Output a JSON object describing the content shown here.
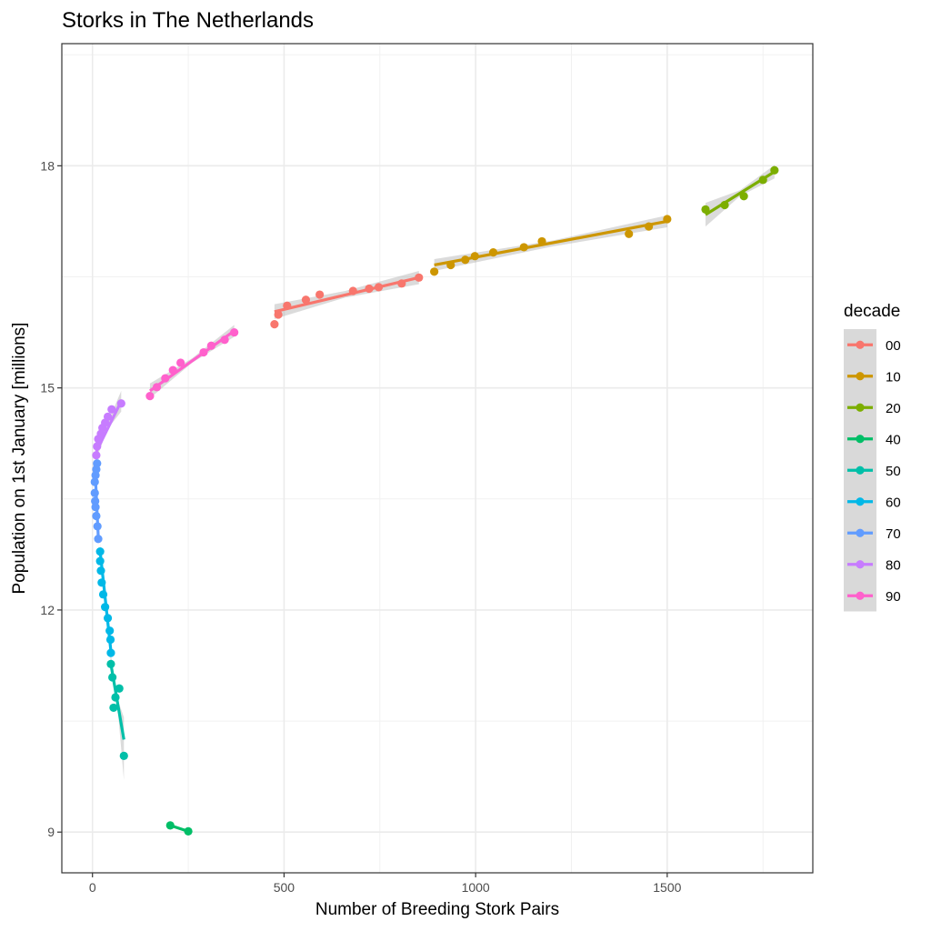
{
  "chart_data": {
    "type": "scatter",
    "title": "Storks in The Netherlands",
    "xlabel": "Number of Breeding Stork Pairs",
    "ylabel": "Population on 1st January [millions]",
    "xlim": [
      -80,
      1880
    ],
    "ylim": [
      8.45,
      19.65
    ],
    "x_ticks": [
      0,
      500,
      1000,
      1500
    ],
    "x_tick_labels": [
      "0",
      "500",
      "1000",
      "1500"
    ],
    "y_ticks": [
      9,
      12,
      15,
      18
    ],
    "y_tick_labels": [
      "9",
      "12",
      "15",
      "18"
    ],
    "grid": true,
    "legend": {
      "title": "decade",
      "position": "right"
    },
    "colors": {
      "00": "#F8766D",
      "10": "#CD9600",
      "20": "#7CAE00",
      "40": "#00BE67",
      "50": "#00BFA8",
      "60": "#00B8E7",
      "70": "#619CFF",
      "80": "#C77CFF",
      "90": "#FF61CC"
    },
    "series": [
      {
        "name": "00",
        "x": [
          475,
          485,
          508,
          557,
          593,
          680,
          722,
          747,
          807,
          852
        ],
        "y": [
          15.86,
          15.99,
          16.11,
          16.19,
          16.26,
          16.31,
          16.34,
          16.36,
          16.41,
          16.49
        ]
      },
      {
        "name": "10",
        "x": [
          892,
          935,
          973,
          998,
          1046,
          1126,
          1173,
          1400,
          1452,
          1500
        ],
        "y": [
          16.57,
          16.66,
          16.73,
          16.78,
          16.83,
          16.9,
          16.98,
          17.08,
          17.18,
          17.28
        ]
      },
      {
        "name": "20",
        "x": [
          1600,
          1650,
          1700,
          1750,
          1780
        ],
        "y": [
          17.41,
          17.47,
          17.59,
          17.81,
          17.94
        ]
      },
      {
        "name": "40",
        "x": [
          203,
          250
        ],
        "y": [
          9.09,
          9.01
        ]
      },
      {
        "name": "50",
        "x": [
          82,
          70,
          60,
          55,
          52,
          48
        ],
        "y": [
          10.03,
          10.94,
          10.82,
          10.68,
          11.09,
          11.27
        ]
      },
      {
        "name": "60",
        "x": [
          48,
          47,
          45,
          40,
          33,
          28,
          24,
          22,
          20,
          20
        ],
        "y": [
          11.42,
          11.6,
          11.72,
          11.89,
          12.04,
          12.21,
          12.37,
          12.53,
          12.66,
          12.79
        ]
      },
      {
        "name": "70",
        "x": [
          15,
          13,
          10,
          8,
          7,
          6,
          6,
          8,
          10,
          12
        ],
        "y": [
          12.96,
          13.13,
          13.27,
          13.39,
          13.47,
          13.58,
          13.73,
          13.82,
          13.9,
          13.98
        ]
      },
      {
        "name": "80",
        "x": [
          10,
          12,
          15,
          22,
          26,
          33,
          40,
          50,
          75
        ],
        "y": [
          14.09,
          14.21,
          14.31,
          14.38,
          14.46,
          14.53,
          14.61,
          14.71,
          14.79
        ]
      },
      {
        "name": "90",
        "x": [
          150,
          168,
          190,
          210,
          230,
          290,
          310,
          345,
          370
        ],
        "y": [
          14.89,
          15.01,
          15.13,
          15.24,
          15.34,
          15.48,
          15.57,
          15.65,
          15.75
        ]
      }
    ],
    "fit_lines": [
      {
        "name": "00",
        "x": [
          475,
          852
        ],
        "y": [
          16.03,
          16.49
        ]
      },
      {
        "name": "10",
        "x": [
          892,
          1500
        ],
        "y": [
          16.66,
          17.25
        ]
      },
      {
        "name": "20",
        "x": [
          1600,
          1780
        ],
        "y": [
          17.34,
          17.92
        ]
      },
      {
        "name": "40",
        "x": [
          203,
          250
        ],
        "y": [
          9.09,
          9.01
        ]
      },
      {
        "name": "50",
        "x": [
          48,
          82
        ],
        "y": [
          11.27,
          10.25
        ]
      },
      {
        "name": "60",
        "x": [
          20,
          48
        ],
        "y": [
          12.79,
          11.45
        ]
      },
      {
        "name": "70",
        "x": [
          6,
          15
        ],
        "y": [
          13.98,
          13.0
        ]
      },
      {
        "name": "80",
        "x": [
          10,
          75
        ],
        "y": [
          14.14,
          14.82
        ]
      },
      {
        "name": "90",
        "x": [
          150,
          370
        ],
        "y": [
          14.96,
          15.77
        ]
      }
    ],
    "confidence_bands": [
      {
        "name": "00",
        "x": [
          475,
          660,
          852
        ],
        "upper": [
          16.13,
          16.31,
          16.58
        ],
        "lower": [
          15.93,
          16.22,
          16.4
        ]
      },
      {
        "name": "10",
        "x": [
          892,
          1200,
          1500
        ],
        "upper": [
          16.74,
          16.99,
          17.33
        ],
        "lower": [
          16.58,
          16.91,
          17.17
        ]
      },
      {
        "name": "20",
        "x": [
          1600,
          1690,
          1780
        ],
        "upper": [
          17.5,
          17.67,
          18.01
        ],
        "lower": [
          17.18,
          17.59,
          17.83
        ]
      },
      {
        "name": "50",
        "x": [
          48,
          65,
          82
        ],
        "upper": [
          11.4,
          10.8,
          10.55
        ],
        "lower": [
          11.14,
          10.72,
          9.7
        ]
      },
      {
        "name": "60",
        "x": [
          20,
          35,
          48
        ],
        "upper": [
          12.9,
          12.05,
          11.62
        ],
        "lower": [
          12.68,
          11.98,
          11.28
        ]
      },
      {
        "name": "70",
        "x": [
          6,
          10,
          15
        ],
        "upper": [
          14.08,
          13.5,
          13.12
        ],
        "lower": [
          13.88,
          13.42,
          12.88
        ]
      },
      {
        "name": "80",
        "x": [
          10,
          40,
          75
        ],
        "upper": [
          14.24,
          14.53,
          14.96
        ],
        "lower": [
          14.04,
          14.45,
          14.68
        ]
      },
      {
        "name": "90",
        "x": [
          150,
          260,
          370
        ],
        "upper": [
          15.06,
          15.4,
          15.85
        ],
        "lower": [
          14.86,
          15.34,
          15.69
        ]
      }
    ]
  }
}
